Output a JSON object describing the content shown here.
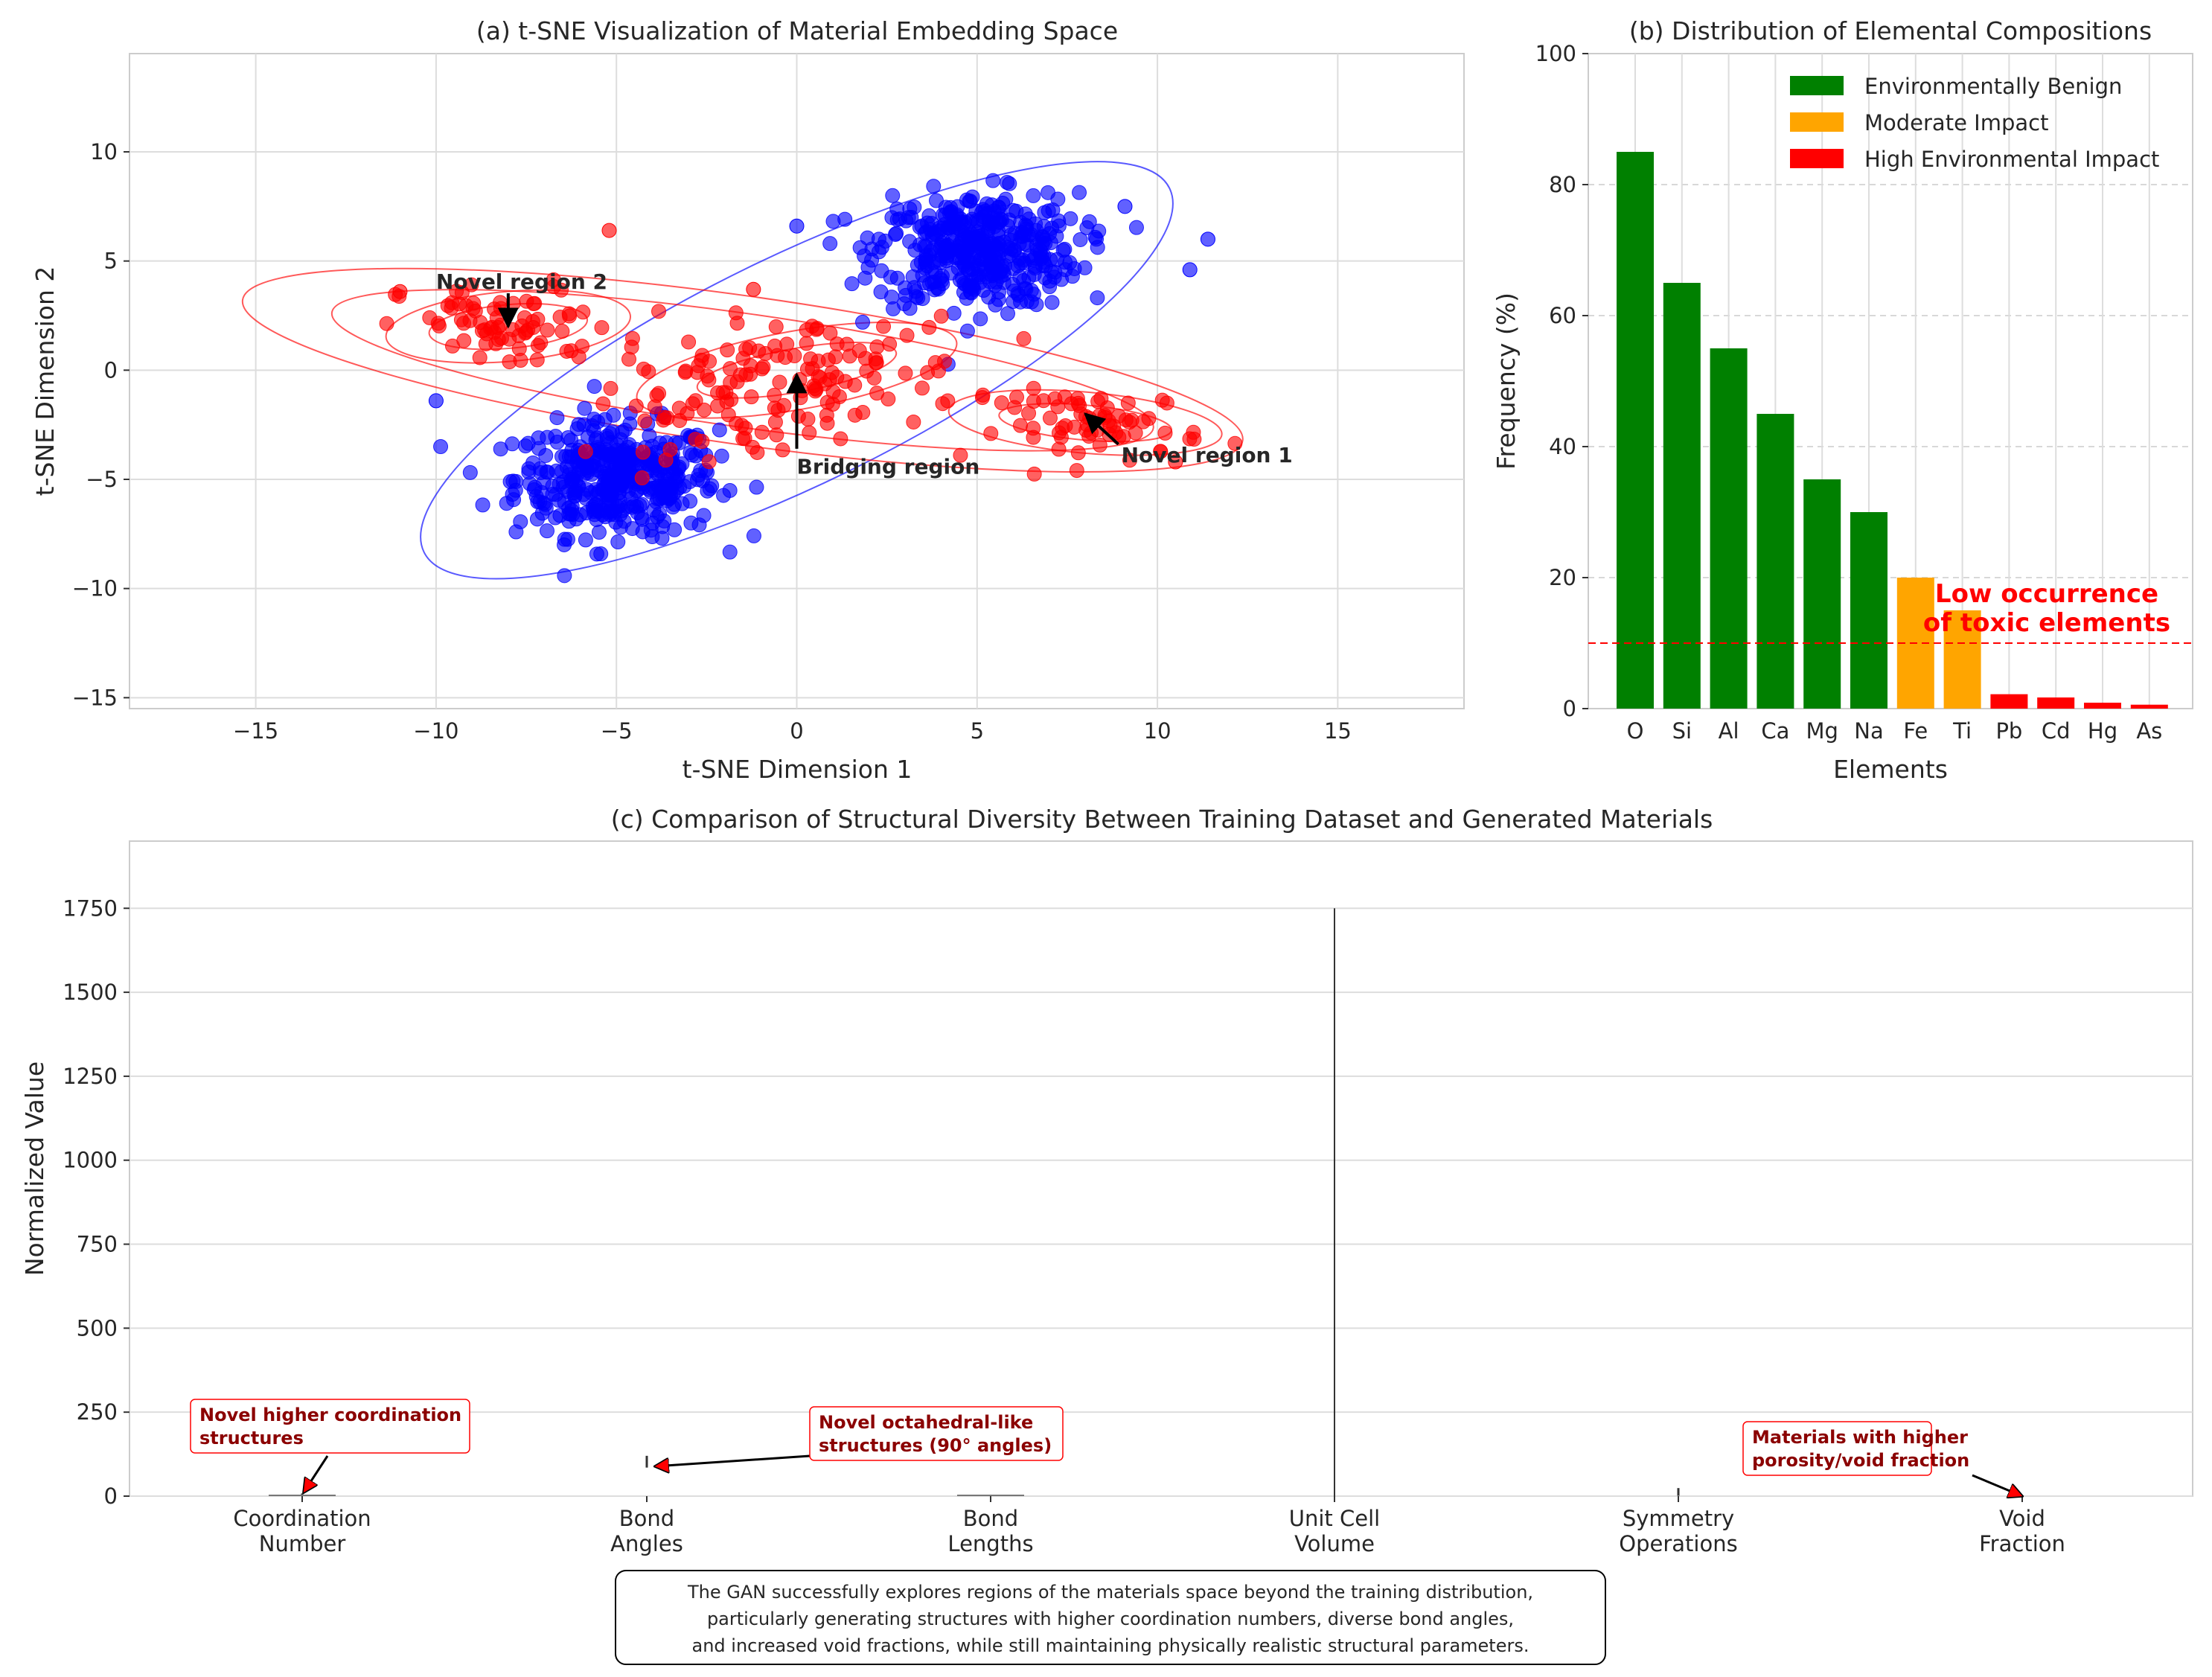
{
  "chart_data": [
    {
      "id": "tsne",
      "type": "scatter",
      "title": "(a) t-SNE Visualization of Material Embedding Space",
      "xlabel": "t-SNE Dimension 1",
      "ylabel": "t-SNE Dimension 2",
      "xlim": [
        -18.5,
        18.5
      ],
      "ylim": [
        -15.5,
        14.5
      ],
      "xticks": [
        -15,
        -10,
        -5,
        0,
        5,
        10,
        15
      ],
      "yticks": [
        -15,
        -10,
        -5,
        0,
        5,
        10
      ],
      "xtick_labels": [
        "−15",
        "−10",
        "−5",
        "0",
        "5",
        "10",
        "15"
      ],
      "ytick_labels": [
        "−15",
        "−10",
        "−5",
        "0",
        "5",
        "10"
      ],
      "grid": true,
      "colors": {
        "training": "#0000ff",
        "generated": "#ff0000"
      },
      "series": [
        {
          "color": "#0000ff",
          "clusters": [
            {
              "center": [
                -5,
                -5
              ],
              "spread": [
                1.4,
                1.3
              ],
              "n": 420
            },
            {
              "center": [
                5,
                5.5
              ],
              "spread": [
                1.4,
                1.3
              ],
              "n": 420
            }
          ],
          "outliers": [
            [
              0,
              6.6
            ],
            [
              11.4,
              6.0
            ],
            [
              10.9,
              4.6
            ],
            [
              -10,
              -1.4
            ],
            [
              9.1,
              7.5
            ]
          ]
        },
        {
          "color": "#ff0000",
          "clusters": [
            {
              "center": [
                -8,
                2
              ],
              "spread": [
                1.5,
                1.0
              ],
              "n": 75
            },
            {
              "center": [
                0,
                0
              ],
              "spread": [
                2.4,
                1.2
              ],
              "n": 110
            },
            {
              "center": [
                8.5,
                -2.5
              ],
              "spread": [
                1.4,
                0.8
              ],
              "n": 70
            },
            {
              "center": [
                -2,
                -2
              ],
              "spread": [
                1.8,
                1.0
              ],
              "n": 45
            }
          ],
          "outliers": [
            [
              -5.2,
              6.4
            ],
            [
              -11,
              3.6
            ],
            [
              10.5,
              -4.2
            ],
            [
              -1.2,
              3.7
            ]
          ]
        }
      ],
      "annotations": [
        {
          "text": "Novel region 2",
          "xy": [
            -8,
            2
          ],
          "xytext": [
            -10,
            4
          ]
        },
        {
          "text": "Bridging region",
          "xy": [
            0,
            -0.2
          ],
          "xytext": [
            0,
            -4.6
          ]
        },
        {
          "text": "Novel region 1",
          "xy": [
            8,
            -2
          ],
          "xytext": [
            9,
            -3.8
          ]
        }
      ]
    },
    {
      "id": "elements",
      "type": "bar",
      "title": "(b) Distribution of Elemental Compositions",
      "xlabel": "Elements",
      "ylabel": "Frequency (%)",
      "ylim": [
        0,
        100
      ],
      "yticks": [
        0,
        20,
        40,
        60,
        80,
        100
      ],
      "categories": [
        "O",
        "Si",
        "Al",
        "Ca",
        "Mg",
        "Na",
        "Fe",
        "Ti",
        "Pb",
        "Cd",
        "Hg",
        "As"
      ],
      "values": [
        85,
        65,
        55,
        45,
        35,
        30,
        20,
        15,
        2.2,
        1.7,
        0.9,
        0.6
      ],
      "bar_colors": [
        "#008000",
        "#008000",
        "#008000",
        "#008000",
        "#008000",
        "#008000",
        "#ffa500",
        "#ffa500",
        "#ff0000",
        "#ff0000",
        "#ff0000",
        "#ff0000"
      ],
      "legend": [
        {
          "label": "Environmentally Benign",
          "color": "#008000"
        },
        {
          "label": "Moderate Impact",
          "color": "#ffa500"
        },
        {
          "label": "High Environmental Impact",
          "color": "#ff0000"
        }
      ],
      "legend_position": "top-right",
      "threshold": 10,
      "threshold_color": "#ff0000",
      "annotation": [
        "Low occurrence",
        "of toxic elements"
      ]
    },
    {
      "id": "diversity",
      "type": "violin",
      "title": "(c) Comparison of Structural Diversity Between Training Dataset and Generated Materials",
      "ylabel": "Normalized Value",
      "ylim": [
        0,
        1950
      ],
      "yticks": [
        0,
        250,
        500,
        750,
        1000,
        1250,
        1500,
        1750
      ],
      "categories": [
        [
          "Coordination",
          "Number"
        ],
        [
          "Bond",
          "Angles"
        ],
        [
          "Bond",
          "Lengths"
        ],
        [
          "Unit Cell",
          "Volume"
        ],
        [
          "Symmetry",
          "Operations"
        ],
        [
          "Void",
          "Fraction"
        ]
      ],
      "ranges": [
        [
          4,
          8
        ],
        [
          85,
          120
        ],
        [
          1.8,
          2.6
        ],
        [
          0,
          1750
        ],
        [
          1,
          24
        ],
        [
          0.1,
          0.5
        ]
      ],
      "annotations": [
        {
          "lines": [
            "Novel higher coordination",
            "structures"
          ],
          "category": 0,
          "value": 8
        },
        {
          "lines": [
            "Novel octahedral-like",
            "structures (90° angles)"
          ],
          "category": 1,
          "value": 90
        },
        {
          "lines": [
            "Materials with higher",
            "porosity/void fraction"
          ],
          "category": 5,
          "value": 0.5
        }
      ],
      "annotation_color": "#8b0000",
      "summary": [
        "The GAN successfully explores regions of the materials space beyond the training distribution,",
        "particularly generating structures with higher coordination numbers, diverse bond angles,",
        "and increased void fractions, while still maintaining physically realistic structural parameters."
      ]
    }
  ]
}
